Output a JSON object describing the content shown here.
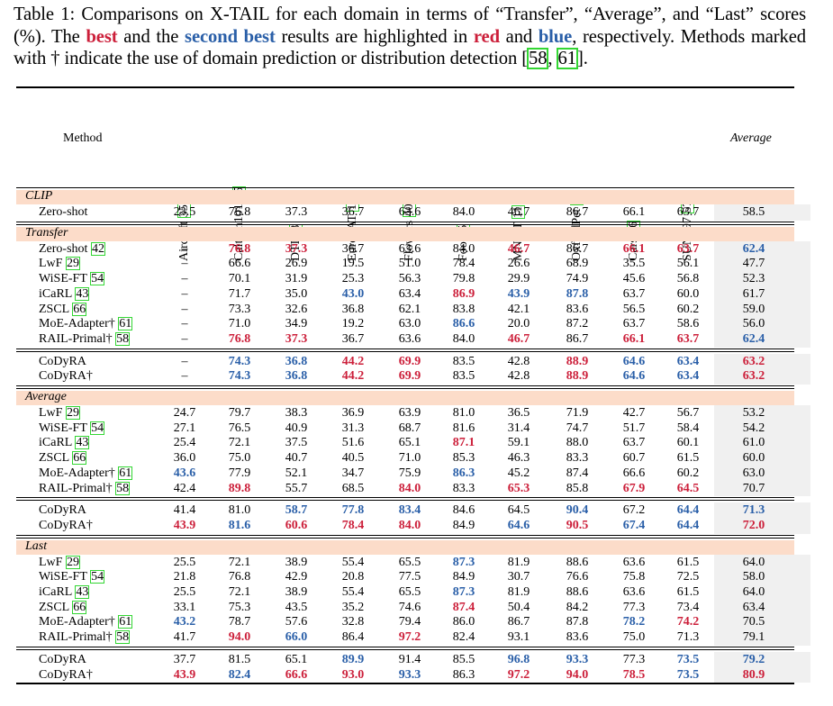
{
  "caption": {
    "p1": "Table 1: Comparisons on X-TAIL for each domain in terms of “Transfer”, “Average”, and “Last” scores (%).  The ",
    "best": "best",
    "p2": " and the ",
    "second_best": "second best",
    "p3": " results are highlighted in ",
    "red": "red",
    "p4": " and ",
    "blue": "blue",
    "p5": ", respectively. Methods marked with † indicate the use of domain prediction or distribution detection [",
    "ref1": "58",
    "p6": ", ",
    "ref2": "61",
    "p7": "]."
  },
  "header": {
    "method": "Method",
    "average": "Average",
    "columns": [
      {
        "name": "Aircraft",
        "ref": "35"
      },
      {
        "name": "Caltech101",
        "ref": "15"
      },
      {
        "name": "DTD",
        "ref": "8"
      },
      {
        "name": "EuroSAT",
        "ref": "19"
      },
      {
        "name": "Flowers",
        "ref": "40"
      },
      {
        "name": "Food",
        "ref": "5"
      },
      {
        "name": "MNIST",
        "ref": "11"
      },
      {
        "name": "OxfordPet",
        "ref": "41"
      },
      {
        "name": "Cars",
        "ref": "26"
      },
      {
        "name": "SUN397",
        "ref": "57"
      }
    ]
  },
  "colors": {
    "red": "#cc1f3a",
    "blue": "#2a5fa8",
    "group_band": "#fcdcc9",
    "average_band": "#f0f0f0",
    "citation_box": "#33d633"
  },
  "groups": [
    {
      "label": "CLIP",
      "blocks": [
        [
          {
            "method": "Zero-shot",
            "ref": "",
            "dagger": "",
            "cells": [
              "23.5",
              "76.8",
              "37.3",
              "36.7",
              "63.6",
              "84.0",
              "46.7",
              "86.7",
              "66.1",
              "63.7",
              "58.5"
            ],
            "hl": "..........."
          }
        ]
      ]
    },
    {
      "label": "Transfer",
      "blocks": [
        [
          {
            "method": "Zero-shot",
            "ref": "42",
            "dagger": "",
            "cells": [
              "–",
              "76.8",
              "37.3",
              "36.7",
              "63.6",
              "84.0",
              "46.7",
              "86.7",
              "66.1",
              "63.7",
              "62.4"
            ],
            "hl": ".rr...r.rrb"
          },
          {
            "method": "LwF",
            "ref": "29",
            "dagger": "",
            "cells": [
              "–",
              "66.6",
              "26.9",
              "19.5",
              "51.0",
              "78.4",
              "26.6",
              "68.9",
              "35.5",
              "56.1",
              "47.7"
            ],
            "hl": "..........."
          },
          {
            "method": "WiSE-FT",
            "ref": "54",
            "dagger": "",
            "cells": [
              "–",
              "70.1",
              "31.9",
              "25.3",
              "56.3",
              "79.8",
              "29.9",
              "74.9",
              "45.6",
              "56.8",
              "52.3"
            ],
            "hl": "..........."
          },
          {
            "method": "iCaRL",
            "ref": "43",
            "dagger": "",
            "cells": [
              "–",
              "71.7",
              "35.0",
              "43.0",
              "63.4",
              "86.9",
              "43.9",
              "87.8",
              "63.7",
              "60.0",
              "61.7"
            ],
            "hl": "...b.rbb..."
          },
          {
            "method": "ZSCL",
            "ref": "66",
            "dagger": "",
            "cells": [
              "–",
              "73.3",
              "32.6",
              "36.8",
              "62.1",
              "83.8",
              "42.1",
              "83.6",
              "56.5",
              "60.2",
              "59.0"
            ],
            "hl": "..........."
          },
          {
            "method": "MoE-Adapter",
            "ref": "61",
            "dagger": "†",
            "cells": [
              "–",
              "71.0",
              "34.9",
              "19.2",
              "63.0",
              "86.6",
              "20.0",
              "87.2",
              "63.7",
              "58.6",
              "56.0"
            ],
            "hl": ".....b....."
          },
          {
            "method": "RAIL-Primal",
            "ref": "58",
            "dagger": "†",
            "cells": [
              "–",
              "76.8",
              "37.3",
              "36.7",
              "63.6",
              "84.0",
              "46.7",
              "86.7",
              "66.1",
              "63.7",
              "62.4"
            ],
            "hl": ".rr...r.rrb"
          }
        ],
        [
          {
            "method": "CoDyRA",
            "ref": "",
            "dagger": "",
            "cells": [
              "–",
              "74.3",
              "36.8",
              "44.2",
              "69.9",
              "83.5",
              "42.8",
              "88.9",
              "64.6",
              "63.4",
              "63.2"
            ],
            "hl": ".bbrr..rbbr"
          },
          {
            "method": "CoDyRA",
            "ref": "",
            "dagger": "†",
            "cells": [
              "–",
              "74.3",
              "36.8",
              "44.2",
              "69.9",
              "83.5",
              "42.8",
              "88.9",
              "64.6",
              "63.4",
              "63.2"
            ],
            "hl": ".bbrr..rbbr"
          }
        ]
      ]
    },
    {
      "label": "Average",
      "blocks": [
        [
          {
            "method": "LwF",
            "ref": "29",
            "dagger": "",
            "cells": [
              "24.7",
              "79.7",
              "38.3",
              "36.9",
              "63.9",
              "81.0",
              "36.5",
              "71.9",
              "42.7",
              "56.7",
              "53.2"
            ],
            "hl": "..........."
          },
          {
            "method": "WiSE-FT",
            "ref": "54",
            "dagger": "",
            "cells": [
              "27.1",
              "76.5",
              "40.9",
              "31.3",
              "68.7",
              "81.6",
              "31.4",
              "74.7",
              "51.7",
              "58.4",
              "54.2"
            ],
            "hl": "..........."
          },
          {
            "method": "iCaRL",
            "ref": "43",
            "dagger": "",
            "cells": [
              "25.4",
              "72.1",
              "37.5",
              "51.6",
              "65.1",
              "87.1",
              "59.1",
              "88.0",
              "63.7",
              "60.1",
              "61.0"
            ],
            "hl": ".....r....."
          },
          {
            "method": "ZSCL",
            "ref": "66",
            "dagger": "",
            "cells": [
              "36.0",
              "75.0",
              "40.7",
              "40.5",
              "71.0",
              "85.3",
              "46.3",
              "83.3",
              "60.7",
              "61.5",
              "60.0"
            ],
            "hl": "..........."
          },
          {
            "method": "MoE-Adapter",
            "ref": "61",
            "dagger": "†",
            "cells": [
              "43.6",
              "77.9",
              "52.1",
              "34.7",
              "75.9",
              "86.3",
              "45.2",
              "87.4",
              "66.6",
              "60.2",
              "63.0"
            ],
            "hl": "b....b....."
          },
          {
            "method": "RAIL-Primal",
            "ref": "58",
            "dagger": "†",
            "cells": [
              "42.4",
              "89.8",
              "55.7",
              "68.5",
              "84.0",
              "83.3",
              "65.3",
              "85.8",
              "67.9",
              "64.5",
              "70.7"
            ],
            "hl": ".r..r.r.rr."
          }
        ],
        [
          {
            "method": "CoDyRA",
            "ref": "",
            "dagger": "",
            "cells": [
              "41.4",
              "81.0",
              "58.7",
              "77.8",
              "83.4",
              "84.6",
              "64.5",
              "90.4",
              "67.2",
              "64.4",
              "71.3"
            ],
            "hl": "..bbb..b.bb"
          },
          {
            "method": "CoDyRA",
            "ref": "",
            "dagger": "†",
            "cells": [
              "43.9",
              "81.6",
              "60.6",
              "78.4",
              "84.0",
              "84.9",
              "64.6",
              "90.5",
              "67.4",
              "64.4",
              "72.0"
            ],
            "hl": "rbrrr.brbbr"
          }
        ]
      ]
    },
    {
      "label": "Last",
      "blocks": [
        [
          {
            "method": "LwF",
            "ref": "29",
            "dagger": "",
            "cells": [
              "25.5",
              "72.1",
              "38.9",
              "55.4",
              "65.5",
              "87.3",
              "81.9",
              "88.6",
              "63.6",
              "61.5",
              "64.0"
            ],
            "hl": ".....b....."
          },
          {
            "method": "WiSE-FT",
            "ref": "54",
            "dagger": "",
            "cells": [
              "21.8",
              "76.8",
              "42.9",
              "20.8",
              "77.5",
              "84.9",
              "30.7",
              "76.6",
              "75.8",
              "72.5",
              "58.0"
            ],
            "hl": "..........."
          },
          {
            "method": "iCaRL",
            "ref": "43",
            "dagger": "",
            "cells": [
              "25.5",
              "72.1",
              "38.9",
              "55.4",
              "65.5",
              "87.3",
              "81.9",
              "88.6",
              "63.6",
              "61.5",
              "64.0"
            ],
            "hl": ".....b....."
          },
          {
            "method": "ZSCL",
            "ref": "66",
            "dagger": "",
            "cells": [
              "33.1",
              "75.3",
              "43.5",
              "35.2",
              "74.6",
              "87.4",
              "50.4",
              "84.2",
              "77.3",
              "73.4",
              "63.4"
            ],
            "hl": ".....r....."
          },
          {
            "method": "MoE-Adapter",
            "ref": "61",
            "dagger": "†",
            "cells": [
              "43.2",
              "78.7",
              "57.6",
              "32.8",
              "79.4",
              "86.0",
              "86.7",
              "87.8",
              "78.2",
              "74.2",
              "70.5"
            ],
            "hl": "b.......br."
          },
          {
            "method": "RAIL-Primal",
            "ref": "58",
            "dagger": "†",
            "cells": [
              "41.7",
              "94.0",
              "66.0",
              "86.4",
              "97.2",
              "82.4",
              "93.1",
              "83.6",
              "75.0",
              "71.3",
              "79.1"
            ],
            "hl": ".rb.r......"
          }
        ],
        [
          {
            "method": "CoDyRA",
            "ref": "",
            "dagger": "",
            "cells": [
              "37.7",
              "81.5",
              "65.1",
              "89.9",
              "91.4",
              "85.5",
              "96.8",
              "93.3",
              "77.3",
              "73.5",
              "79.2"
            ],
            "hl": "...b..bb.bb"
          },
          {
            "method": "CoDyRA",
            "ref": "",
            "dagger": "†",
            "cells": [
              "43.9",
              "82.4",
              "66.6",
              "93.0",
              "93.3",
              "86.3",
              "97.2",
              "94.0",
              "78.5",
              "73.5",
              "80.9"
            ],
            "hl": "rbrrb.rrrbr"
          }
        ]
      ]
    }
  ]
}
